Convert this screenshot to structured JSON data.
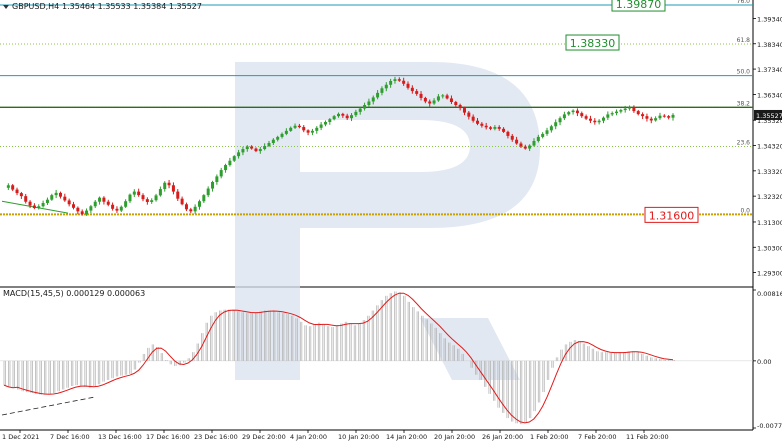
{
  "header": {
    "symbol": "GBPUSD,H4",
    "ohlc": "1.35464 1.35533 1.35384 1.35527"
  },
  "macd_header": "MACD(15,45,5) 0.000129 0.000063",
  "colors": {
    "bull": "#2e9e2e",
    "bear": "#d81b1b",
    "fib_line": "#1f9bb6",
    "fib_dotted": "#8bc34a",
    "level_line": "#c8a100",
    "target_green": "#1e8f2c",
    "target_red": "#e11b1b",
    "macd_hist": "#b5b5b5",
    "macd_signal": "#e11b1b",
    "watermark": "#d8e1ee"
  },
  "chart_data": {
    "type": "candlestick",
    "price_axis": {
      "ticks": [
        "1.39340",
        "1.38340",
        "1.37340",
        "1.36340",
        "1.35527",
        "1.35320",
        "1.34320",
        "1.33320",
        "1.32320",
        "1.31300",
        "1.30300",
        "1.29300"
      ],
      "current_price": "1.35527",
      "ylim": [
        1.2881,
        1.3999
      ]
    },
    "macd_axis": {
      "ticks": [
        "0.008169",
        "0.00",
        "-0.007741"
      ],
      "ylim": [
        -0.007741,
        0.008169
      ]
    },
    "x_ticks": [
      "1 Dec 2021",
      "7 Dec 16:00",
      "13 Dec 16:00",
      "17 Dec 16:00",
      "23 Dec 16:00",
      "29 Dec 20:00",
      "4 Jan 20:00",
      "10 Jan 20:00",
      "14 Jan 20:00",
      "20 Jan 20:00",
      "26 Jan 20:00",
      "1 Feb 20:00",
      "7 Feb 20:00",
      "11 Feb 20:00"
    ],
    "fib_levels": [
      {
        "label": "76.0",
        "price": 1.3987
      },
      {
        "label": "61.8",
        "price": 1.3833
      },
      {
        "label": "50.0",
        "price": 1.3708
      },
      {
        "label": "38.2",
        "price": 1.3583
      },
      {
        "label": "23.6",
        "price": 1.3428
      },
      {
        "label": "0.0",
        "price": 1.316
      }
    ],
    "targets": [
      {
        "label": "1.39870",
        "price": 1.3987,
        "color": "green"
      },
      {
        "label": "1.38330",
        "price": 1.3833,
        "color": "green"
      },
      {
        "label": "1.31600",
        "price": 1.316,
        "color": "red"
      }
    ],
    "horizontal_levels": [
      1.3583,
      1.316
    ],
    "price_path": [
      1.3265,
      1.3275,
      1.3258,
      1.3244,
      1.3232,
      1.321,
      1.3195,
      1.3185,
      1.3192,
      1.3205,
      1.3218,
      1.3236,
      1.3245,
      1.323,
      1.3215,
      1.32,
      1.3186,
      1.3172,
      1.3161,
      1.3175,
      1.3192,
      1.321,
      1.3226,
      1.321,
      1.3198,
      1.3182,
      1.3175,
      1.319,
      1.3212,
      1.3238,
      1.325,
      1.3236,
      1.322,
      1.3209,
      1.3216,
      1.3235,
      1.326,
      1.3285,
      1.3275,
      1.325,
      1.3222,
      1.32,
      1.318,
      1.3172,
      1.319,
      1.3212,
      1.3236,
      1.3262,
      1.3288,
      1.331,
      1.3335,
      1.3355,
      1.3372,
      1.339,
      1.3405,
      1.3418,
      1.3428,
      1.342,
      1.341,
      1.3418,
      1.343,
      1.3442,
      1.3455,
      1.3466,
      1.3478,
      1.349,
      1.3502,
      1.351,
      1.3505,
      1.3492,
      1.3483,
      1.349,
      1.3502,
      1.3515,
      1.3525,
      1.3536,
      1.3548,
      1.3557,
      1.355,
      1.354,
      1.3552,
      1.3565,
      1.3578,
      1.3592,
      1.3606,
      1.3622,
      1.364,
      1.3658,
      1.3672,
      1.3687,
      1.3694,
      1.3688,
      1.3676,
      1.366,
      1.3647,
      1.3636,
      1.362,
      1.3606,
      1.3598,
      1.361,
      1.3626,
      1.363,
      1.3618,
      1.3604,
      1.3592,
      1.358,
      1.3562,
      1.3546,
      1.353,
      1.3518,
      1.351,
      1.3504,
      1.3498,
      1.3505,
      1.3498,
      1.3486,
      1.347,
      1.3455,
      1.344,
      1.3428,
      1.342,
      1.3432,
      1.345,
      1.3466,
      1.3478,
      1.3492,
      1.3508,
      1.3524,
      1.354,
      1.3555,
      1.3564,
      1.357,
      1.356,
      1.3548,
      1.3538,
      1.353,
      1.3524,
      1.353,
      1.3542,
      1.3555,
      1.356,
      1.3566,
      1.3572,
      1.3578,
      1.3582,
      1.3568,
      1.3556,
      1.3548,
      1.3538,
      1.3531,
      1.354,
      1.355,
      1.3548,
      1.3542,
      1.3553
    ]
  },
  "macd_series": [
    -0.0028,
    -0.003,
    -0.0031,
    -0.0033,
    -0.0035,
    -0.0036,
    -0.0037,
    -0.0038,
    -0.0039,
    -0.0039,
    -0.0038,
    -0.0037,
    -0.0035,
    -0.0033,
    -0.0031,
    -0.0029,
    -0.0028,
    -0.0029,
    -0.003,
    -0.0031,
    -0.0029,
    -0.0027,
    -0.0024,
    -0.0022,
    -0.002,
    -0.0018,
    -0.0017,
    -0.0016,
    -0.0015,
    -0.001,
    -0.0002,
    0.0008,
    0.0015,
    0.0019,
    0.0016,
    0.0009,
    0.0001,
    -0.0004,
    -0.0006,
    -0.0005,
    -0.0002,
    0.0003,
    0.001,
    0.002,
    0.0032,
    0.0044,
    0.0052,
    0.0056,
    0.0058,
    0.0059,
    0.0059,
    0.0058,
    0.0057,
    0.0056,
    0.0055,
    0.0055,
    0.0056,
    0.0057,
    0.0058,
    0.0058,
    0.0057,
    0.0056,
    0.0055,
    0.0054,
    0.0052,
    0.0049,
    0.0045,
    0.0041,
    0.004,
    0.0042,
    0.0044,
    0.0042,
    0.004,
    0.0039,
    0.0041,
    0.0043,
    0.0045,
    0.0043,
    0.0041,
    0.0043,
    0.0047,
    0.0052,
    0.0058,
    0.0064,
    0.007,
    0.0075,
    0.0078,
    0.008,
    0.0079,
    0.0075,
    0.0068,
    0.0062,
    0.0057,
    0.0052,
    0.0048,
    0.0043,
    0.0038,
    0.0032,
    0.0026,
    0.0021,
    0.0018,
    0.0014,
    0.0008,
    0.0,
    -0.0008,
    -0.0016,
    -0.0022,
    -0.003,
    -0.0038,
    -0.0046,
    -0.0054,
    -0.006,
    -0.0066,
    -0.007,
    -0.0072,
    -0.0073,
    -0.0071,
    -0.0066,
    -0.0058,
    -0.0048,
    -0.0036,
    -0.0022,
    -0.0008,
    0.0004,
    0.0013,
    0.0019,
    0.0022,
    0.0024,
    0.0023,
    0.002,
    0.0017,
    0.0014,
    0.0011,
    0.001,
    0.001,
    0.0009,
    0.0009,
    0.001,
    0.001,
    0.0011,
    0.0011,
    0.001,
    0.0008,
    0.0006,
    0.0004,
    0.0003,
    0.0002,
    0.0001,
    0.0001,
    0.0001
  ]
}
